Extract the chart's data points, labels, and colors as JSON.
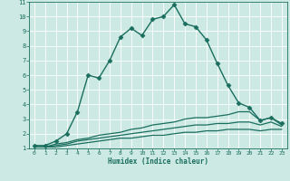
{
  "title": "",
  "xlabel": "Humidex (Indice chaleur)",
  "xlim": [
    -0.5,
    23.5
  ],
  "ylim": [
    1,
    11
  ],
  "xticks": [
    0,
    1,
    2,
    3,
    4,
    5,
    6,
    7,
    8,
    9,
    10,
    11,
    12,
    13,
    14,
    15,
    16,
    17,
    18,
    19,
    20,
    21,
    22,
    23
  ],
  "yticks": [
    1,
    2,
    3,
    4,
    5,
    6,
    7,
    8,
    9,
    10,
    11
  ],
  "bg_color": "#cce9e4",
  "grid_color": "#ffffff",
  "line_color": "#1a6e5e",
  "series": [
    {
      "x": [
        0,
        1,
        2,
        3,
        4,
        5,
        6,
        7,
        8,
        9,
        10,
        11,
        12,
        13,
        14,
        15,
        16,
        17,
        18,
        19,
        20,
        21,
        22,
        23
      ],
      "y": [
        1.2,
        1.2,
        1.5,
        2.0,
        3.5,
        6.0,
        5.8,
        7.0,
        8.6,
        9.2,
        8.7,
        9.8,
        10.0,
        10.8,
        9.5,
        9.3,
        8.4,
        6.8,
        5.3,
        4.1,
        3.8,
        2.9,
        3.1,
        2.7
      ],
      "marker": "D",
      "markersize": 2.5,
      "linewidth": 1.0
    },
    {
      "x": [
        0,
        1,
        2,
        3,
        4,
        5,
        6,
        7,
        8,
        9,
        10,
        11,
        12,
        13,
        14,
        15,
        16,
        17,
        18,
        19,
        20,
        21,
        22,
        23
      ],
      "y": [
        1.1,
        1.1,
        1.3,
        1.4,
        1.6,
        1.7,
        1.9,
        2.0,
        2.1,
        2.3,
        2.4,
        2.6,
        2.7,
        2.8,
        3.0,
        3.1,
        3.1,
        3.2,
        3.3,
        3.5,
        3.5,
        2.9,
        3.1,
        2.6
      ],
      "marker": null,
      "markersize": 0,
      "linewidth": 0.9
    },
    {
      "x": [
        0,
        1,
        2,
        3,
        4,
        5,
        6,
        7,
        8,
        9,
        10,
        11,
        12,
        13,
        14,
        15,
        16,
        17,
        18,
        19,
        20,
        21,
        22,
        23
      ],
      "y": [
        1.1,
        1.1,
        1.2,
        1.3,
        1.5,
        1.6,
        1.7,
        1.8,
        1.9,
        2.0,
        2.1,
        2.2,
        2.3,
        2.4,
        2.5,
        2.6,
        2.6,
        2.7,
        2.7,
        2.8,
        2.8,
        2.6,
        2.8,
        2.5
      ],
      "marker": null,
      "markersize": 0,
      "linewidth": 0.9
    },
    {
      "x": [
        0,
        1,
        2,
        3,
        4,
        5,
        6,
        7,
        8,
        9,
        10,
        11,
        12,
        13,
        14,
        15,
        16,
        17,
        18,
        19,
        20,
        21,
        22,
        23
      ],
      "y": [
        1.1,
        1.1,
        1.1,
        1.2,
        1.3,
        1.4,
        1.5,
        1.6,
        1.7,
        1.7,
        1.8,
        1.9,
        1.9,
        2.0,
        2.1,
        2.1,
        2.2,
        2.2,
        2.3,
        2.3,
        2.3,
        2.2,
        2.3,
        2.3
      ],
      "marker": null,
      "markersize": 0,
      "linewidth": 0.9
    }
  ]
}
